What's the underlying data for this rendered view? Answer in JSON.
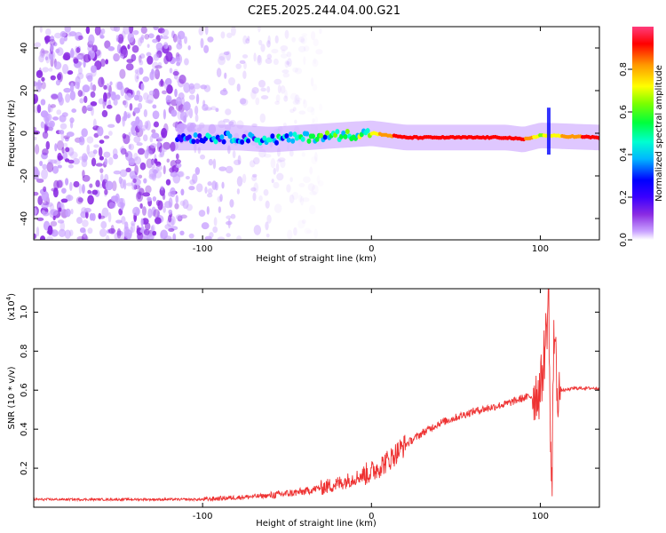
{
  "title": "C2E5.2025.244.04.00.G21",
  "chart_data": [
    {
      "type": "heatmap",
      "name": "spectrogram",
      "xlabel": "Height of straight line (km)",
      "ylabel": "Frequency (Hz)",
      "xlim": [
        -200,
        135
      ],
      "ylim": [
        -50,
        50
      ],
      "xticks": [
        -100,
        0,
        100
      ],
      "xtick_labels": [
        "-100",
        "0",
        "100"
      ],
      "yticks": [
        -40,
        -20,
        0,
        20,
        40
      ],
      "ytick_labels": [
        "-40",
        "-20",
        "0",
        "20",
        "40"
      ],
      "colorbar": {
        "label": "Normalized spectral amplitude",
        "range": [
          0,
          1
        ],
        "ticks": [
          0.0,
          0.2,
          0.4,
          0.6,
          0.8
        ],
        "tick_labels": [
          "0.0",
          "0.2",
          "0.4",
          "0.6",
          "0.8"
        ],
        "colors": [
          "#ffffff",
          "#c9a2ff",
          "#8a2be2",
          "#3b00ff",
          "#0000ff",
          "#00b7ff",
          "#00ffd0",
          "#00ff3c",
          "#7cff00",
          "#ffff00",
          "#ff9900",
          "#ff0000",
          "#ff3c7c"
        ]
      },
      "features": [
        {
          "name": "noise-region",
          "x_range": [
            -200,
            -110
          ],
          "freq_range": [
            -50,
            50
          ],
          "amplitude": 0.15
        },
        {
          "name": "scattered-noise",
          "x_range": [
            -110,
            -30
          ],
          "freq_range": [
            -50,
            50
          ],
          "amplitude": 0.05
        },
        {
          "name": "tone-line",
          "x": [
            -115,
            -80,
            -60,
            -40,
            -20,
            0,
            20,
            60,
            80,
            90,
            100,
            135
          ],
          "freq": [
            -2,
            -2,
            -3,
            -2,
            -1,
            0,
            -2,
            -2,
            -2,
            -3,
            -1,
            -2
          ],
          "amplitude": [
            0.35,
            0.45,
            0.45,
            0.55,
            0.6,
            0.75,
            0.95,
            0.95,
            0.95,
            0.9,
            0.7,
            0.95
          ]
        },
        {
          "name": "spike-at-105",
          "x": 105,
          "freq_range": [
            -10,
            12
          ],
          "amplitude": 0.3
        }
      ]
    },
    {
      "type": "line",
      "name": "snr",
      "xlabel": "Height of straight line (km)",
      "ylabel": "SNR (10 * v/v)",
      "yscale_label": "(x10",
      "yscale_exp": "4",
      "yscale_close": ")",
      "xlim": [
        -200,
        135
      ],
      "ylim": [
        0,
        1.12
      ],
      "xticks": [
        -100,
        0,
        100
      ],
      "xtick_labels": [
        "-100",
        "0",
        "100"
      ],
      "yticks": [
        0.2,
        0.4,
        0.6,
        0.8,
        1.0
      ],
      "ytick_labels": [
        "0.2",
        "0.4",
        "0.6",
        "0.8",
        "1.0"
      ],
      "series": [
        {
          "name": "SNR",
          "color": "#ee3333",
          "x": [
            -200,
            -150,
            -100,
            -80,
            -60,
            -40,
            -20,
            -10,
            0,
            10,
            20,
            30,
            40,
            60,
            80,
            90,
            95,
            100,
            102,
            104,
            105,
            106,
            107,
            108,
            109,
            110,
            115,
            120,
            135
          ],
          "y": [
            0.04,
            0.04,
            0.04,
            0.05,
            0.06,
            0.08,
            0.12,
            0.15,
            0.18,
            0.24,
            0.32,
            0.38,
            0.43,
            0.49,
            0.53,
            0.56,
            0.57,
            0.6,
            0.75,
            0.95,
            1.1,
            0.3,
            0.1,
            0.95,
            0.8,
            0.6,
            0.6,
            0.61,
            0.61
          ]
        }
      ]
    }
  ]
}
